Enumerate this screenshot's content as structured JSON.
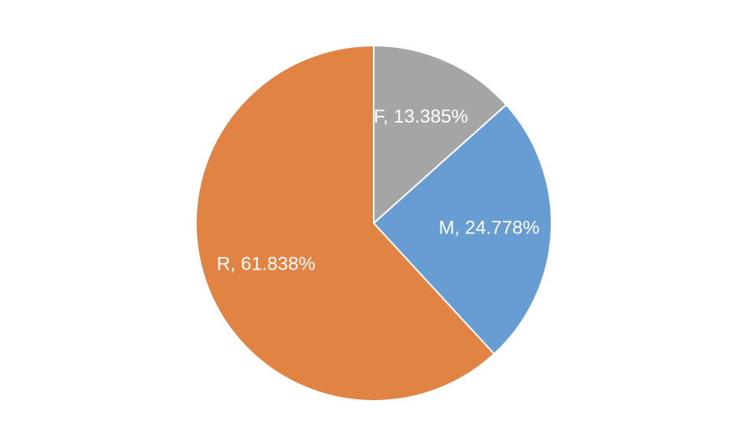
{
  "chart_data": {
    "type": "pie",
    "values": [
      13.385,
      24.778,
      61.838
    ],
    "value_labels": [
      "F, 13.385%",
      "M, 24.778%",
      "R, 61.838%"
    ],
    "colors": [
      "#a5a5a5",
      "#689dd3",
      "#e08343"
    ],
    "start_angle": 0,
    "direction": "clockwise"
  }
}
